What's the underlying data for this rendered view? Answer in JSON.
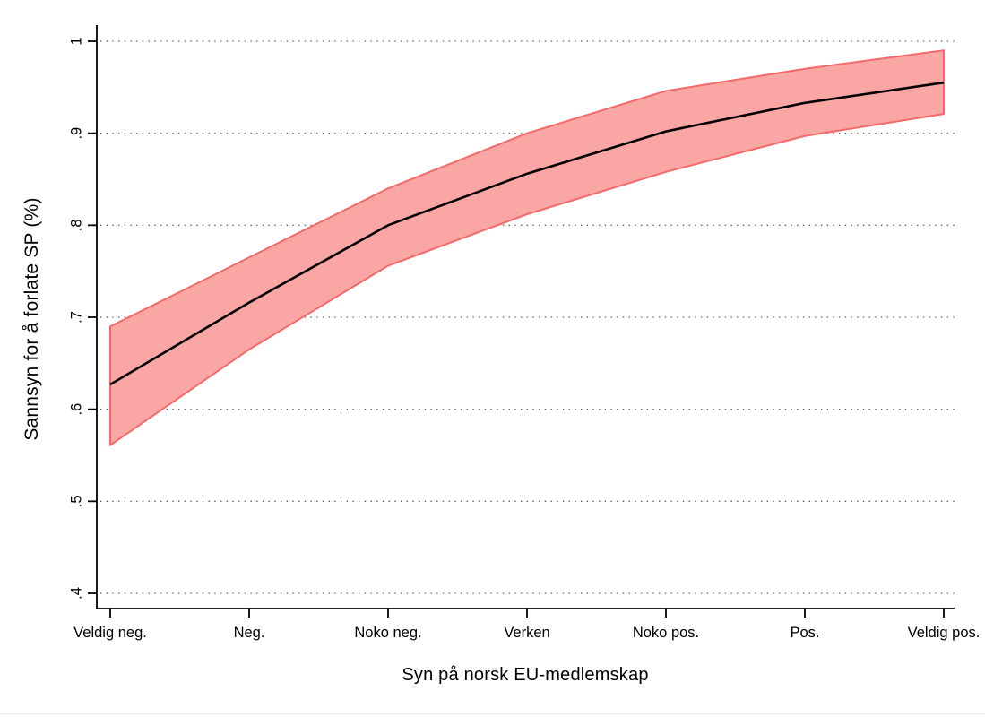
{
  "figure": {
    "background": "#ffffff"
  },
  "chart_data": {
    "type": "line",
    "title": "",
    "xlabel": "Syn på norsk EU-medlemskap",
    "ylabel": "Sannsyn for å forlate SP (%)",
    "categories": [
      "Veldig neg.",
      "Neg.",
      "Noko neg.",
      "Verken",
      "Noko pos.",
      "Pos.",
      "Veldig pos."
    ],
    "y_ticks": [
      {
        "value": 0.4,
        "label": ".4"
      },
      {
        "value": 0.5,
        "label": ".5"
      },
      {
        "value": 0.6,
        "label": ".6"
      },
      {
        "value": 0.7,
        "label": ".7"
      },
      {
        "value": 0.8,
        "label": ".8"
      },
      {
        "value": 0.9,
        "label": ".9"
      },
      {
        "value": 1.0,
        "label": "1"
      }
    ],
    "ylim": [
      0.4,
      1.0
    ],
    "grid": "horizontal-dotted",
    "legend": "none",
    "series": [
      {
        "name": "Predicted probability",
        "role": "mean",
        "values": [
          0.627,
          0.716,
          0.8,
          0.856,
          0.902,
          0.933,
          0.955
        ],
        "color": "#000000"
      },
      {
        "name": "95% CI upper",
        "role": "ci-upper",
        "values": [
          0.69,
          0.765,
          0.84,
          0.9,
          0.946,
          0.97,
          0.99
        ],
        "color": "#F4696A"
      },
      {
        "name": "95% CI lower",
        "role": "ci-lower",
        "values": [
          0.561,
          0.665,
          0.756,
          0.812,
          0.858,
          0.897,
          0.921
        ],
        "color": "#F4696A"
      }
    ],
    "colors": {
      "band_fill": "#F9A6A5",
      "band_edge": "#F4696A",
      "mean_line": "#000000",
      "axis": "#000000",
      "gridline": "#565656",
      "tick_text": "#000000"
    }
  }
}
